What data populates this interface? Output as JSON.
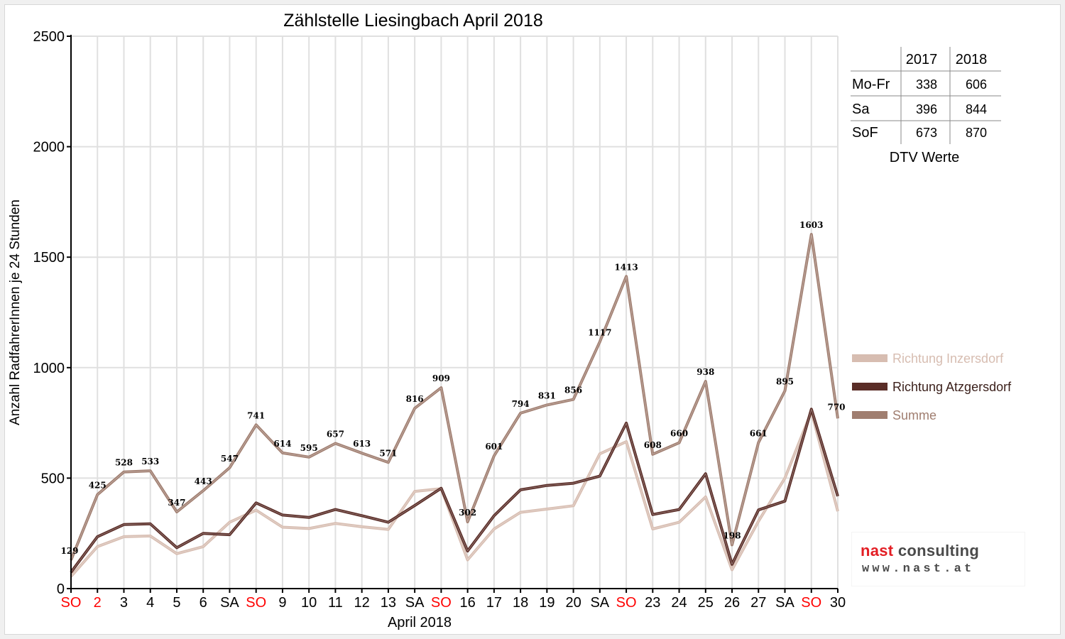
{
  "chart_data": {
    "type": "line",
    "title": "Zählstelle Liesingbach April 2018",
    "ylabel": "Anzahl RadfahrerInnen je 24 Stunden",
    "xlabel": "April 2018",
    "ylim": [
      0,
      2500
    ],
    "yticks": [
      0,
      500,
      1000,
      1500,
      2000,
      2500
    ],
    "grid": true,
    "legend_position": "right",
    "categories": [
      "SO",
      "2",
      "3",
      "4",
      "5",
      "6",
      "SA",
      "SO",
      "9",
      "10",
      "11",
      "12",
      "13",
      "SA",
      "SO",
      "16",
      "17",
      "18",
      "19",
      "20",
      "SA",
      "SO",
      "23",
      "24",
      "25",
      "26",
      "27",
      "SA",
      "SO",
      "30"
    ],
    "red_categories": [
      0,
      1,
      7,
      14,
      21,
      28
    ],
    "series": [
      {
        "name": "Richtung Inzersdorf",
        "color": "#d7bdb1",
        "values": [
          55,
          190,
          235,
          238,
          158,
          190,
          300,
          355,
          278,
          272,
          295,
          280,
          268,
          440,
          452,
          130,
          270,
          345,
          360,
          375,
          610,
          665,
          270,
          300,
          415,
          85,
          305,
          500,
          800,
          350
        ]
      },
      {
        "name": "Richtung Atzgersdorf",
        "color": "#5a2d27",
        "values": [
          74,
          235,
          290,
          293,
          185,
          250,
          244,
          388,
          333,
          322,
          358,
          330,
          300,
          376,
          454,
          170,
          330,
          447,
          467,
          477,
          509,
          749,
          335,
          358,
          520,
          110,
          356,
          396,
          812,
          418
        ]
      },
      {
        "name": "Summe",
        "color": "#a07e70",
        "values": [
          129,
          425,
          528,
          533,
          347,
          443,
          547,
          741,
          614,
          595,
          657,
          613,
          571,
          816,
          909,
          302,
          601,
          794,
          831,
          856,
          1117,
          1413,
          608,
          660,
          938,
          198,
          661,
          895,
          1603,
          770
        ]
      }
    ],
    "data_labels": [
      "129",
      "425",
      "528",
      "533",
      "347",
      "443",
      "547",
      "741",
      "614",
      "595",
      "657",
      "613",
      "571",
      "816",
      "909",
      "302",
      "601",
      "794",
      "831",
      "856",
      "1117",
      "1413",
      "608",
      "660",
      "938",
      "198",
      "661",
      "895",
      "1603",
      "770"
    ]
  },
  "dtv_table": {
    "caption": "DTV Werte",
    "columns": [
      "2017",
      "2018"
    ],
    "rows": [
      {
        "label": "Mo-Fr",
        "v2017": "338",
        "v2018": "606"
      },
      {
        "label": "Sa",
        "v2017": "396",
        "v2018": "844"
      },
      {
        "label": "SoF",
        "v2017": "673",
        "v2018": "870"
      }
    ]
  },
  "logo": {
    "line1_red": "nast",
    "line1_dark": "consulting",
    "line2": "www.nast.at"
  },
  "colors": {
    "red_tick": "#ff0000",
    "grid": "#e0e0e0",
    "axis": "#000000"
  }
}
